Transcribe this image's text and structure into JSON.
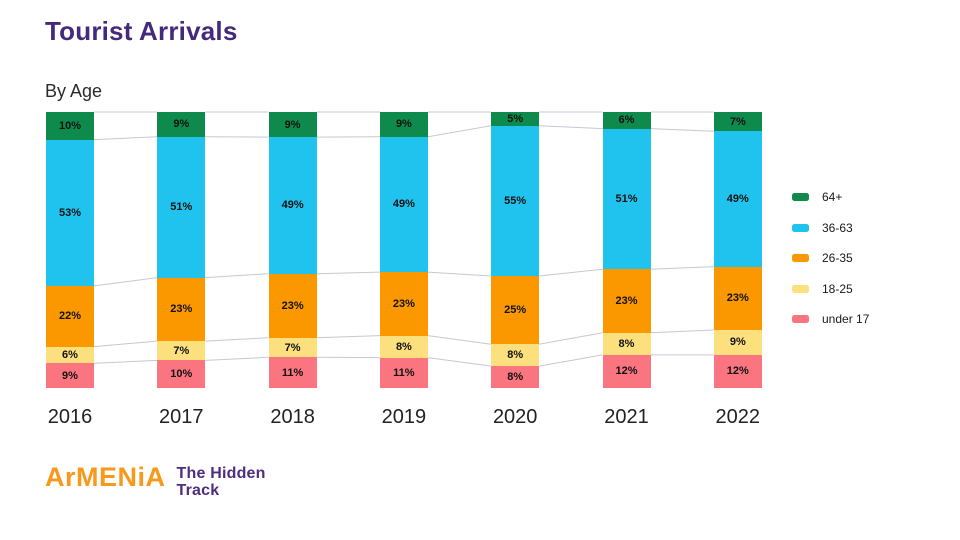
{
  "title": "Tourist Arrivals",
  "subtitle": "By Age",
  "logo": {
    "brand": "ArMENiA",
    "tagline_line1": "The Hidden",
    "tagline_line2": "Track"
  },
  "colors": {
    "title": "#452a7c",
    "logo_brand": "#f8991b",
    "logo_tagline": "#4f2c80",
    "connector_line": "#c7c7d8",
    "data_label": "#111111",
    "background": "#ffffff"
  },
  "chart_data": {
    "type": "bar",
    "stacked": true,
    "percent": true,
    "title": "Tourist Arrivals",
    "subtitle": "By Age",
    "categories": [
      "2016",
      "2017",
      "2018",
      "2019",
      "2020",
      "2021",
      "2022"
    ],
    "series": [
      {
        "name": "64+",
        "color": "#0e8a4d",
        "values": [
          10,
          9,
          9,
          9,
          5,
          6,
          7
        ]
      },
      {
        "name": "36-63",
        "color": "#1fc3ee",
        "values": [
          53,
          51,
          49,
          49,
          55,
          51,
          49
        ]
      },
      {
        "name": "26-35",
        "color": "#fb9800",
        "values": [
          22,
          23,
          23,
          23,
          25,
          23,
          23
        ]
      },
      {
        "name": "18-25",
        "color": "#fce07e",
        "values": [
          6,
          7,
          7,
          8,
          8,
          8,
          9
        ]
      },
      {
        "name": "under 17",
        "color": "#fb7580",
        "values": [
          9,
          10,
          11,
          11,
          8,
          12,
          12
        ]
      }
    ],
    "value_suffix": "%",
    "legend_position": "right",
    "legend_order_top_to_bottom": [
      "64+",
      "36-63",
      "26-35",
      "18-25",
      "under 17"
    ],
    "connector_lines": true,
    "xlabel": "",
    "ylabel": ""
  }
}
